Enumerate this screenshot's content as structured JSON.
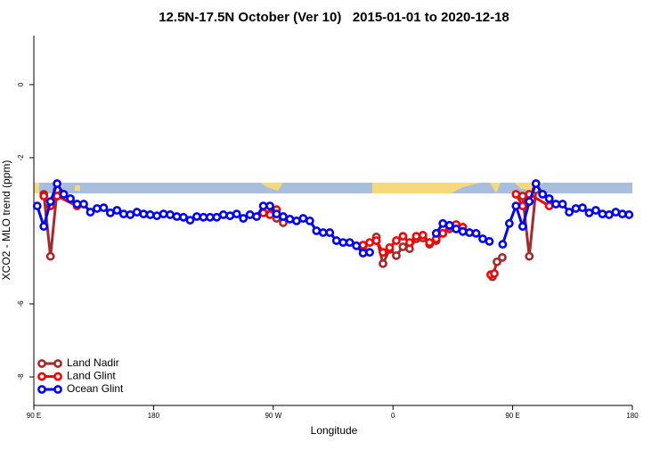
{
  "chart_data": {
    "type": "line",
    "title": "12.5N-17.5N October (Ver 10)   2015-01-01 to 2020-12-18",
    "xlabel": "Longitude",
    "ylabel": "XCO2 - MLO trend (ppm)",
    "xlim": [
      90,
      540
    ],
    "ylim": [
      -8.78,
      1.34
    ],
    "xticks": [
      {
        "value": 90,
        "label": "90 E"
      },
      180,
      {
        "value": 270,
        "label": "90 W"
      },
      {
        "value": 360,
        "label": "0"
      },
      {
        "value": 450,
        "label": "90 E"
      },
      {
        "value": 540,
        "label": "180"
      }
    ],
    "yticks": [
      0,
      -2,
      -6,
      -8
    ],
    "legend": "bottom-left",
    "series": [
      {
        "name": "Land Nadir",
        "color": "#a52a2a",
        "x": [
          97.5,
          102.5,
          107.5,
          null,
          267.5,
          272.5,
          277.5,
          null,
          337.5,
          347.5,
          352.5,
          357.5,
          362.5,
          367.5,
          372.5,
          377.5,
          382.5,
          387.5,
          392.5,
          397.5,
          402.5,
          407.5,
          null,
          434.8,
          438.2,
          442.2,
          null,
          457.5,
          462.5,
          467.5
        ],
        "values": [
          -3.0,
          -4.7,
          -2.88,
          null,
          -3.54,
          -3.66,
          -3.78,
          null,
          -4.44,
          -4.17,
          -4.9,
          -4.51,
          -4.68,
          -4.44,
          -4.49,
          -4.22,
          -4.2,
          -4.37,
          -4.27,
          -4.07,
          -3.95,
          -3.85,
          null,
          -5.26,
          -4.85,
          -4.73,
          null,
          -3.05,
          -4.7,
          -2.88
        ]
      },
      {
        "name": "Land Glint",
        "color": "#ff0000",
        "x": [
          97.5,
          102.5,
          107.5,
          122.5,
          null,
          262.5,
          267.5,
          272.5,
          null,
          337.5,
          342.5,
          347.5,
          352.5,
          357.5,
          362.5,
          367.5,
          372.5,
          377.5,
          382.5,
          387.5,
          392.5,
          397.5,
          402.5,
          407.5,
          412.5,
          null,
          433.5,
          436.2,
          null,
          452.5,
          457.5,
          462.5,
          477.5
        ],
        "values": [
          -3.05,
          -3.32,
          -3.05,
          -3.32,
          null,
          -3.51,
          -3.56,
          -3.42,
          null,
          -4.39,
          -4.32,
          -4.27,
          -4.59,
          -4.46,
          -4.27,
          -4.15,
          -4.32,
          -4.15,
          -4.12,
          -4.32,
          -4.22,
          -4.07,
          -3.88,
          -3.83,
          -3.9,
          null,
          -5.2,
          -5.17,
          null,
          -3.0,
          -3.32,
          -3.0,
          -3.32
        ]
      },
      {
        "name": "Ocean Glint",
        "color": "#0000ff",
        "x": [
          92.5,
          97.5,
          102.5,
          107.5,
          112.5,
          117.5,
          122.5,
          127.5,
          132.5,
          137.5,
          142.5,
          147.5,
          152.5,
          157.5,
          162.5,
          167.5,
          172.5,
          177.5,
          182.5,
          187.5,
          192.5,
          197.5,
          202.5,
          207.5,
          212.5,
          217.5,
          222.5,
          227.5,
          232.5,
          237.5,
          242.5,
          247.5,
          252.5,
          257.5,
          262.5,
          267.5,
          272.5,
          277.5,
          282.5,
          287.5,
          292.5,
          297.5,
          302.5,
          307.5,
          312.5,
          317.5,
          322.5,
          327.5,
          332.5,
          337.5,
          342.5,
          null,
          392.5,
          397.5,
          402.5,
          407.5,
          412.5,
          417.5,
          422.5,
          427.5,
          432.5,
          null,
          442.5,
          447.5,
          452.5,
          457.5,
          462.5,
          467.5,
          472.5,
          477.5,
          482.5,
          487.5,
          492.5,
          497.5,
          502.5,
          507.5,
          512.5,
          517.5,
          522.5,
          527.5,
          532.5,
          537.5
        ],
        "values": [
          -3.32,
          -3.88,
          -3.2,
          -2.71,
          -3.0,
          -3.12,
          -3.27,
          -3.27,
          -3.49,
          -3.39,
          -3.37,
          -3.51,
          -3.44,
          -3.54,
          -3.56,
          -3.49,
          -3.54,
          -3.56,
          -3.59,
          -3.54,
          -3.56,
          -3.61,
          -3.63,
          -3.71,
          -3.61,
          -3.63,
          -3.63,
          -3.63,
          -3.56,
          -3.59,
          -3.54,
          -3.66,
          -3.56,
          -3.61,
          -3.32,
          -3.32,
          -3.54,
          -3.61,
          -3.68,
          -3.73,
          -3.66,
          -3.73,
          -4.0,
          -4.05,
          -4.05,
          -4.27,
          -4.32,
          -4.32,
          -4.41,
          -4.61,
          -4.59,
          null,
          -4.07,
          -3.8,
          -3.85,
          -3.95,
          -4.02,
          -4.05,
          -4.07,
          -4.22,
          -4.29,
          null,
          -4.37,
          -3.8,
          -3.32,
          -3.88,
          -3.2,
          -2.71,
          -3.0,
          -3.12,
          -3.27,
          -3.27,
          -3.49,
          -3.39,
          -3.37,
          -3.51,
          -3.44,
          -3.54,
          -3.56,
          -3.49,
          -3.54,
          -3.56
        ]
      }
    ]
  }
}
